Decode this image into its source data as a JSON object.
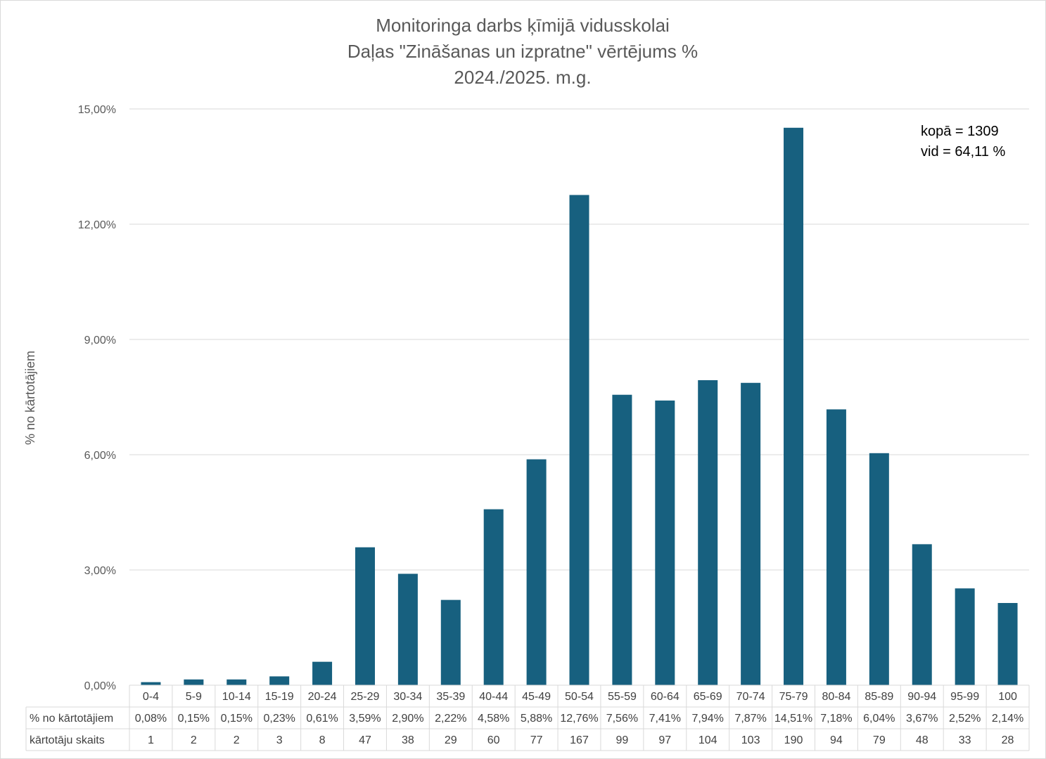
{
  "chart_data": {
    "type": "bar",
    "title_lines": [
      "Monitoringa darbs ķīmijā vidusskolai",
      "Daļas \"Zināšanas un izpratne\" vērtējums %",
      "2024./2025. m.g."
    ],
    "ylabel": "% no kārtotājiem",
    "ylim": [
      0,
      15
    ],
    "yticks": [
      0,
      3,
      6,
      9,
      12,
      15
    ],
    "ytick_labels": [
      "0,00%",
      "3,00%",
      "6,00%",
      "9,00%",
      "12,00%",
      "15,00%"
    ],
    "grid": true,
    "bar_color": "#17607f",
    "categories": [
      "0-4",
      "5-9",
      "10-14",
      "15-19",
      "20-24",
      "25-29",
      "30-34",
      "35-39",
      "40-44",
      "45-49",
      "50-54",
      "55-59",
      "60-64",
      "65-69",
      "70-74",
      "75-79",
      "80-84",
      "85-89",
      "90-94",
      "95-99",
      "100"
    ],
    "values": [
      0.08,
      0.15,
      0.15,
      0.23,
      0.61,
      3.59,
      2.9,
      2.22,
      4.58,
      5.88,
      12.76,
      7.56,
      7.41,
      7.94,
      7.87,
      14.51,
      7.18,
      6.04,
      3.67,
      2.52,
      2.14
    ],
    "annotations": [
      "kopā = 1309",
      "vid = 64,11 %"
    ],
    "table": {
      "rows": [
        {
          "label": "% no kārtotājiem",
          "cells": [
            "0,08%",
            "0,15%",
            "0,15%",
            "0,23%",
            "0,61%",
            "3,59%",
            "2,90%",
            "2,22%",
            "4,58%",
            "5,88%",
            "12,76%",
            "7,56%",
            "7,41%",
            "7,94%",
            "7,87%",
            "14,51%",
            "7,18%",
            "6,04%",
            "3,67%",
            "2,52%",
            "2,14%"
          ]
        },
        {
          "label": "kārtotāju skaits",
          "cells": [
            "1",
            "2",
            "2",
            "3",
            "8",
            "47",
            "38",
            "29",
            "60",
            "77",
            "167",
            "99",
            "97",
            "104",
            "103",
            "190",
            "94",
            "79",
            "48",
            "33",
            "28"
          ]
        }
      ]
    }
  }
}
